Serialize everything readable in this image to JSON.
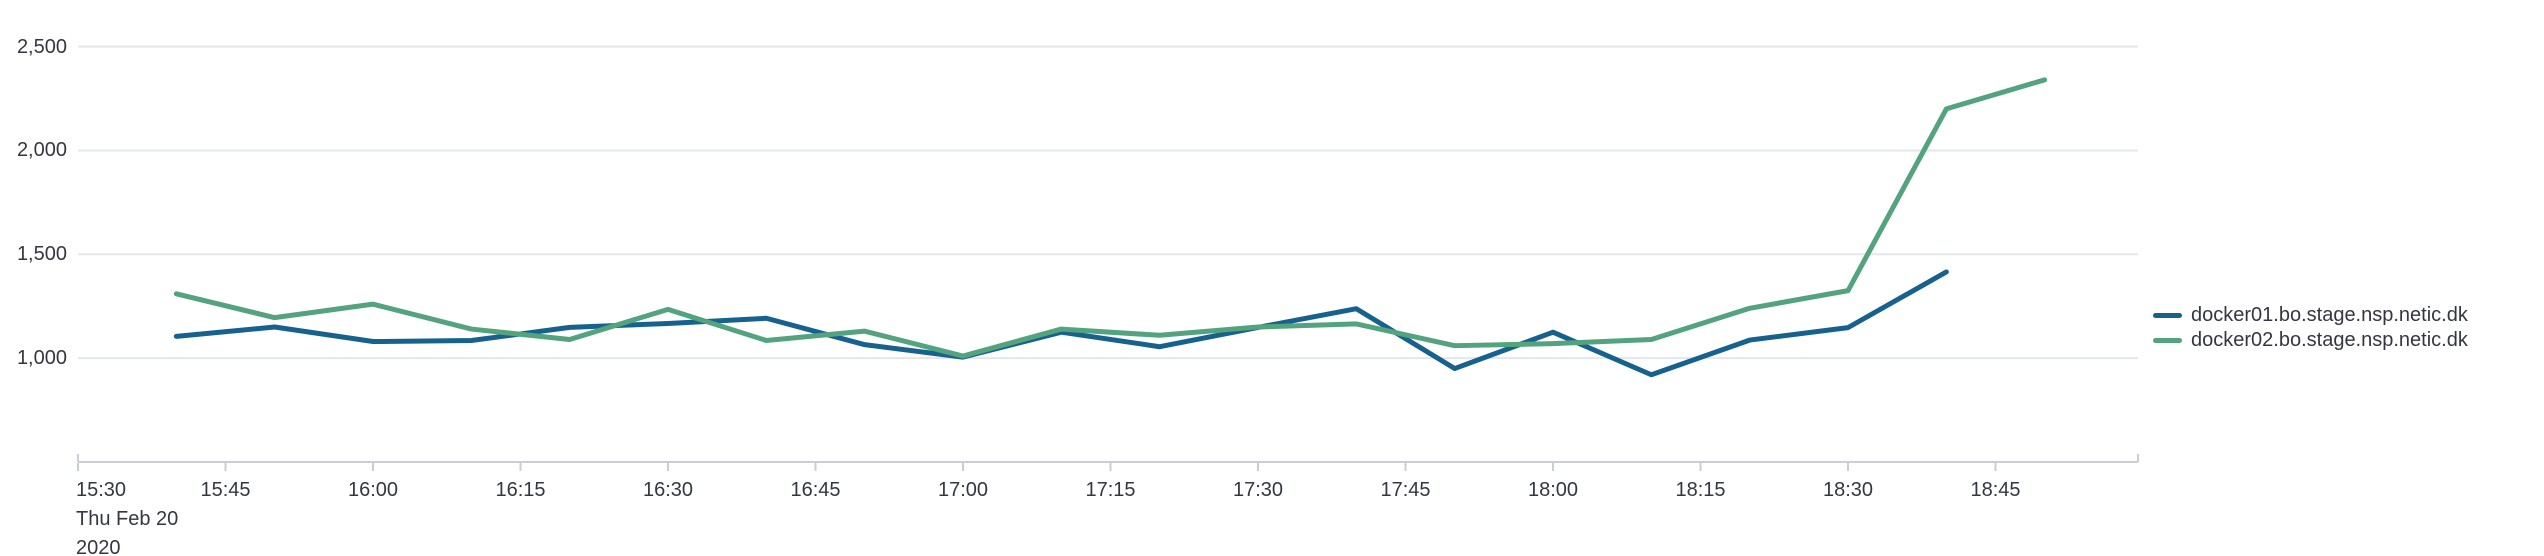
{
  "chart_data": {
    "type": "line",
    "title": "",
    "grid": true,
    "legend_position": "right",
    "x_axis": {
      "tick_labels": [
        "15:30",
        "15:45",
        "16:00",
        "16:15",
        "16:30",
        "16:45",
        "17:00",
        "17:15",
        "17:30",
        "17:45",
        "18:00",
        "18:15",
        "18:30",
        "18:45"
      ],
      "tick_interval_minutes": 15,
      "first_tick_date_lines": [
        "Thu Feb 20",
        "2020"
      ]
    },
    "y_axis": {
      "tick_labels": [
        "1,000",
        "1,500",
        "2,000",
        "2,500"
      ],
      "tick_values": [
        1000,
        1500,
        2000,
        2500
      ],
      "range_min": 500,
      "range_max": 2740
    },
    "series": [
      {
        "name": "docker01.bo.stage.nsp.netic.dk",
        "color": "#17618f",
        "x_minutes_after_1530": [
          10,
          20,
          30,
          40,
          50,
          60,
          70,
          80,
          90,
          100,
          110,
          120,
          130,
          140,
          150,
          160,
          170,
          180,
          190
        ],
        "values": [
          1105,
          1150,
          1080,
          1085,
          1148,
          1167,
          1192,
          1065,
          1005,
          1125,
          1055,
          1148,
          1238,
          950,
          1125,
          920,
          1087,
          1147,
          1415
        ]
      },
      {
        "name": "docker02.bo.stage.nsp.netic.dk",
        "color": "#52a37e",
        "x_minutes_after_1530": [
          10,
          20,
          30,
          40,
          50,
          60,
          70,
          80,
          90,
          100,
          110,
          120,
          130,
          140,
          150,
          160,
          170,
          180,
          190,
          200
        ],
        "values": [
          1310,
          1195,
          1260,
          1140,
          1090,
          1235,
          1085,
          1130,
          1010,
          1140,
          1110,
          1150,
          1165,
          1060,
          1070,
          1090,
          1240,
          1325,
          2200,
          2340
        ]
      }
    ]
  },
  "colors": {
    "text": "#343741",
    "gridline": "#e3e7ec",
    "axis": "#c9ced5"
  }
}
